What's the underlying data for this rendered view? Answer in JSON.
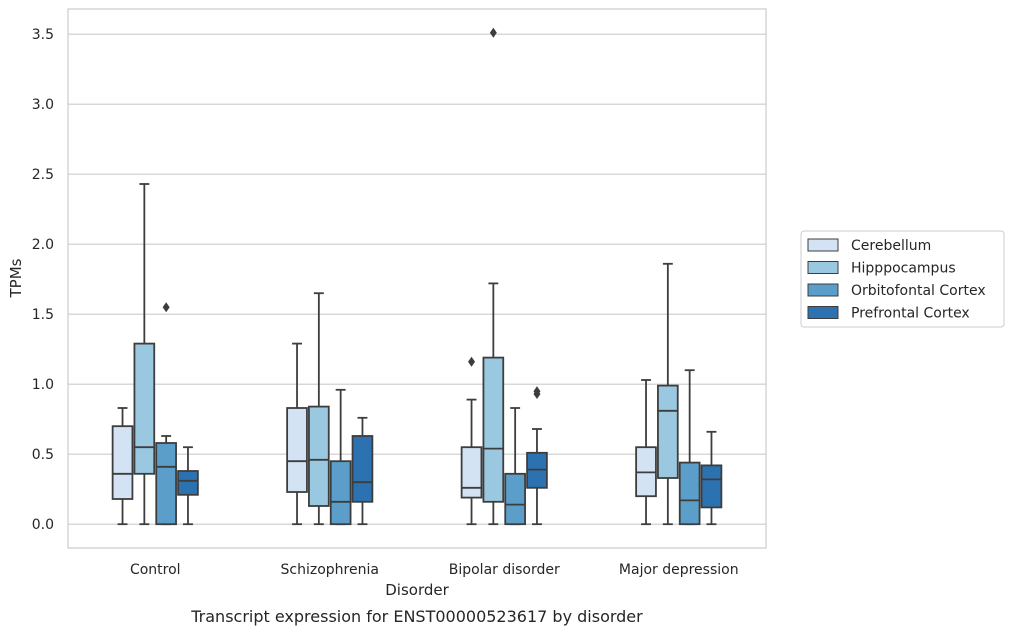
{
  "chart_data": {
    "type": "box",
    "caption": "Transcript expression for ENST00000523617 by disorder",
    "xlabel": "Disorder",
    "ylabel": "TPMs",
    "ylim": [
      -0.17,
      3.68
    ],
    "yticks": [
      "0.0",
      "0.5",
      "1.0",
      "1.5",
      "2.0",
      "2.5",
      "3.0",
      "3.5"
    ],
    "grid": "horizontal",
    "legend_position": "right",
    "categories": [
      "Control",
      "Schizophrenia",
      "Bipolar disorder",
      "Major depression"
    ],
    "series": [
      {
        "name": "Cerebellum",
        "color": "#d3e3f3",
        "boxes": [
          {
            "whislo": 0.0,
            "q1": 0.18,
            "med": 0.36,
            "q3": 0.7,
            "whishi": 0.83,
            "fliers": []
          },
          {
            "whislo": 0.0,
            "q1": 0.23,
            "med": 0.45,
            "q3": 0.83,
            "whishi": 1.29,
            "fliers": []
          },
          {
            "whislo": 0.0,
            "q1": 0.19,
            "med": 0.26,
            "q3": 0.55,
            "whishi": 0.89,
            "fliers": [
              1.16
            ]
          },
          {
            "whislo": 0.0,
            "q1": 0.2,
            "med": 0.37,
            "q3": 0.55,
            "whishi": 1.03,
            "fliers": []
          }
        ]
      },
      {
        "name": "Hipppocampus",
        "color": "#9ac8e0",
        "boxes": [
          {
            "whislo": 0.0,
            "q1": 0.36,
            "med": 0.55,
            "q3": 1.29,
            "whishi": 2.43,
            "fliers": []
          },
          {
            "whislo": 0.0,
            "q1": 0.13,
            "med": 0.46,
            "q3": 0.84,
            "whishi": 1.65,
            "fliers": []
          },
          {
            "whislo": 0.0,
            "q1": 0.16,
            "med": 0.54,
            "q3": 1.19,
            "whishi": 1.72,
            "fliers": [
              3.51
            ]
          },
          {
            "whislo": 0.0,
            "q1": 0.33,
            "med": 0.81,
            "q3": 0.99,
            "whishi": 1.86,
            "fliers": []
          }
        ]
      },
      {
        "name": "Orbitofontal Cortex",
        "color": "#5a9ec9",
        "boxes": [
          {
            "whislo": 0.0,
            "q1": 0.0,
            "med": 0.41,
            "q3": 0.58,
            "whishi": 0.63,
            "fliers": [
              1.55
            ]
          },
          {
            "whislo": 0.0,
            "q1": 0.0,
            "med": 0.16,
            "q3": 0.45,
            "whishi": 0.96,
            "fliers": []
          },
          {
            "whislo": 0.0,
            "q1": 0.0,
            "med": 0.14,
            "q3": 0.36,
            "whishi": 0.83,
            "fliers": []
          },
          {
            "whislo": 0.0,
            "q1": 0.0,
            "med": 0.17,
            "q3": 0.44,
            "whishi": 1.1,
            "fliers": []
          }
        ]
      },
      {
        "name": "Prefrontal Cortex",
        "color": "#2c72b0",
        "boxes": [
          {
            "whislo": 0.0,
            "q1": 0.21,
            "med": 0.31,
            "q3": 0.38,
            "whishi": 0.55,
            "fliers": []
          },
          {
            "whislo": 0.0,
            "q1": 0.16,
            "med": 0.3,
            "q3": 0.63,
            "whishi": 0.76,
            "fliers": []
          },
          {
            "whislo": 0.0,
            "q1": 0.26,
            "med": 0.39,
            "q3": 0.51,
            "whishi": 0.68,
            "fliers": [
              0.93,
              0.95
            ]
          },
          {
            "whislo": 0.0,
            "q1": 0.12,
            "med": 0.32,
            "q3": 0.42,
            "whishi": 0.66,
            "fliers": []
          }
        ]
      }
    ]
  }
}
